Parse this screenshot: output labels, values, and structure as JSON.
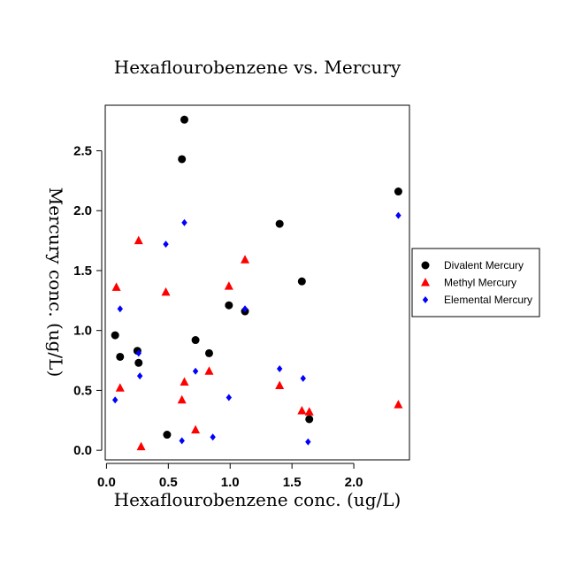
{
  "chart_data": {
    "type": "scatter",
    "title": "Hexaflourobenzene vs. Mercury",
    "xlabel": "Hexaflourobenzene conc. (ug/L)",
    "ylabel": "Mercury conc. (ug/L)",
    "xlim": [
      -0.01,
      2.45
    ],
    "ylim": [
      -0.08,
      2.88
    ],
    "xticks": [
      0.0,
      0.5,
      1.0,
      1.5,
      2.0
    ],
    "xtick_labels": [
      "0.0",
      "0.5",
      "1.0",
      "1.5",
      "2.0"
    ],
    "yticks": [
      0.0,
      0.5,
      1.0,
      1.5,
      2.0,
      2.5
    ],
    "ytick_labels": [
      "0.0",
      "0.5",
      "1.0",
      "1.5",
      "2.0",
      "2.5"
    ],
    "grid": false,
    "legend_position": "right",
    "series": [
      {
        "name": "Divalent Mercury",
        "marker": "circle",
        "color": "#000000",
        "x": [
          0.07,
          0.11,
          0.25,
          0.26,
          0.49,
          0.61,
          0.63,
          0.72,
          0.83,
          0.99,
          1.12,
          1.4,
          1.58,
          1.64,
          2.36
        ],
        "y": [
          0.96,
          0.78,
          0.83,
          0.73,
          0.13,
          2.43,
          2.76,
          0.92,
          0.81,
          1.21,
          1.16,
          1.89,
          1.41,
          0.26,
          2.16
        ]
      },
      {
        "name": "Methyl Mercury",
        "marker": "triangle",
        "color": "#ff0000",
        "x": [
          0.08,
          0.11,
          0.26,
          0.28,
          0.48,
          0.61,
          0.63,
          0.72,
          0.83,
          0.99,
          1.12,
          1.4,
          1.58,
          1.64,
          2.36
        ],
        "y": [
          1.36,
          0.52,
          1.75,
          0.03,
          1.32,
          0.42,
          0.57,
          0.17,
          0.66,
          1.37,
          1.59,
          0.54,
          0.33,
          0.32,
          0.38
        ]
      },
      {
        "name": "Elemental Mercury",
        "marker": "diamond",
        "color": "#0000ff",
        "x": [
          0.07,
          0.11,
          0.26,
          0.27,
          0.48,
          0.61,
          0.63,
          0.72,
          0.86,
          0.99,
          1.12,
          1.4,
          1.59,
          1.63,
          2.36
        ],
        "y": [
          0.42,
          1.18,
          0.81,
          0.62,
          1.72,
          0.08,
          1.9,
          0.66,
          0.11,
          0.44,
          1.18,
          0.68,
          0.6,
          0.07,
          1.96
        ]
      }
    ]
  }
}
